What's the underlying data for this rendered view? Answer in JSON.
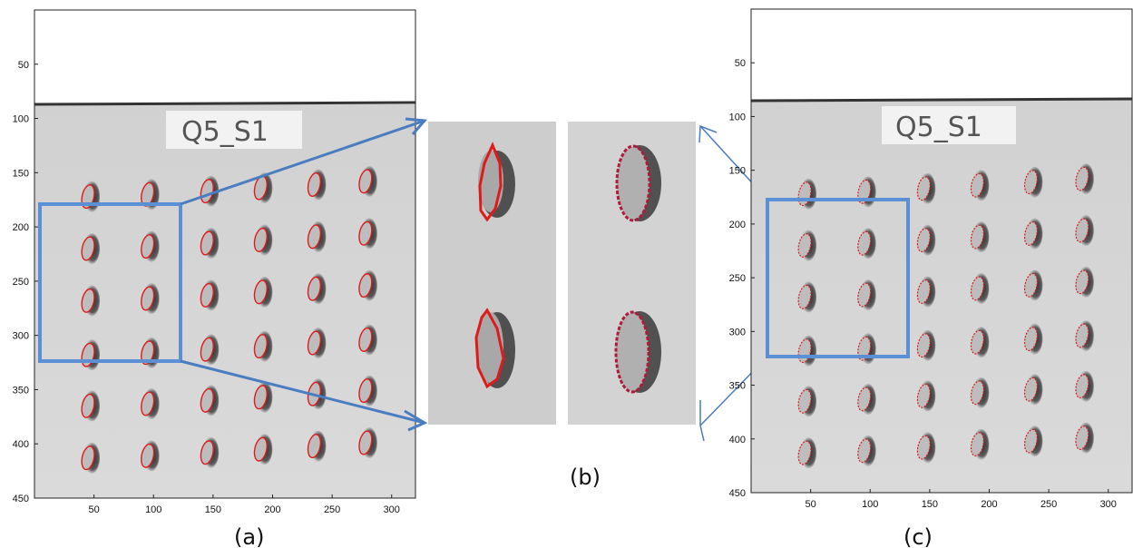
{
  "panels": {
    "a": {
      "label": "(a)"
    },
    "b": {
      "label": "(b)"
    },
    "c": {
      "label": "(c)"
    }
  },
  "specimen_tag": "Q5_S1",
  "axes": {
    "xlim": [
      0,
      320
    ],
    "ylim": [
      450,
      0
    ],
    "xticks": [
      50,
      100,
      150,
      200,
      250,
      300
    ],
    "yticks": [
      50,
      100,
      150,
      200,
      250,
      300,
      350,
      400,
      450
    ]
  },
  "colors": {
    "highlight_box": "#5b8fd6",
    "contour_a": "#e01a1a",
    "contour_b_right": "#b01a3a",
    "contour_c": "#e01a1a",
    "plate_bg": "#d6d6d6",
    "top_strip": "#ffffff",
    "spot_shadow": "#4a4a4a"
  }
}
